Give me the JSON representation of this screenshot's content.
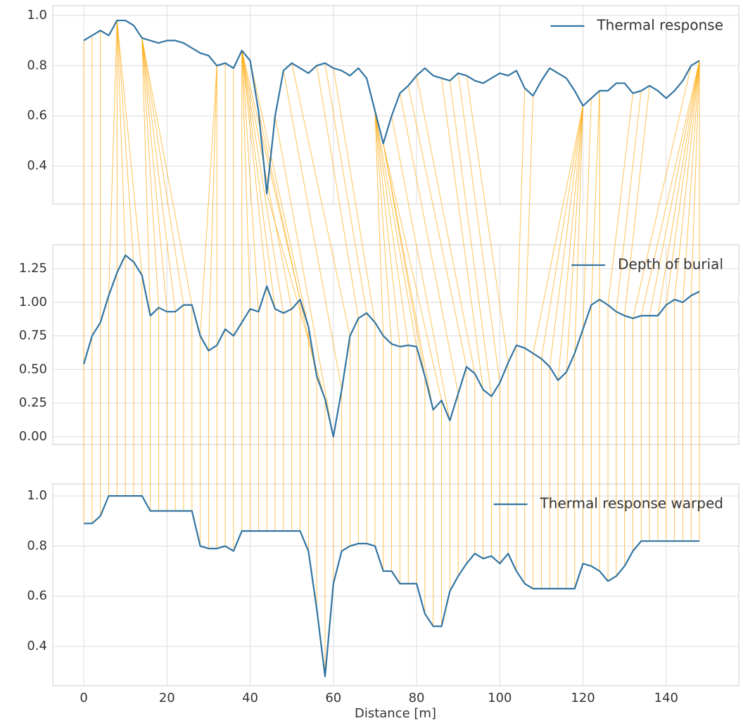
{
  "chart_data": [
    {
      "type": "line",
      "x": [
        0,
        2,
        4,
        6,
        8,
        10,
        12,
        14,
        16,
        18,
        20,
        22,
        24,
        26,
        28,
        30,
        32,
        34,
        36,
        38,
        40,
        42,
        44,
        46,
        48,
        50,
        52,
        54,
        56,
        58,
        60,
        62,
        64,
        66,
        68,
        70,
        72,
        74,
        76,
        78,
        80,
        82,
        84,
        86,
        88,
        90,
        92,
        94,
        96,
        98,
        100,
        102,
        104,
        106,
        108,
        110,
        112,
        114,
        116,
        118,
        120,
        122,
        124,
        126,
        128,
        130,
        132,
        134,
        136,
        138,
        140,
        142,
        144,
        146,
        148
      ],
      "series": [
        {
          "name": "Thermal response",
          "color": "#3274a1",
          "values": [
            0.9,
            0.92,
            0.94,
            0.92,
            0.98,
            0.98,
            0.96,
            0.91,
            0.9,
            0.89,
            0.9,
            0.9,
            0.89,
            0.87,
            0.85,
            0.84,
            0.8,
            0.81,
            0.79,
            0.86,
            0.82,
            0.62,
            0.29,
            0.6,
            0.78,
            0.81,
            0.79,
            0.77,
            0.8,
            0.81,
            0.79,
            0.78,
            0.76,
            0.79,
            0.75,
            0.62,
            0.49,
            0.6,
            0.69,
            0.72,
            0.76,
            0.79,
            0.76,
            0.75,
            0.74,
            0.77,
            0.76,
            0.74,
            0.73,
            0.75,
            0.77,
            0.76,
            0.78,
            0.71,
            0.68,
            0.74,
            0.79,
            0.77,
            0.75,
            0.7,
            0.64,
            0.67,
            0.7,
            0.7,
            0.73,
            0.73,
            0.69,
            0.7,
            0.72,
            0.7,
            0.67,
            0.7,
            0.74,
            0.8,
            0.82
          ]
        }
      ],
      "xlim": [
        -7.45,
        157.45
      ],
      "ylim": [
        0.249,
        1.039
      ],
      "yticks": [
        0.4,
        0.6,
        0.8,
        {
          "value": 1.0,
          "label": "1.0"
        }
      ],
      "grid": true,
      "legend": "upper right"
    },
    {
      "type": "line",
      "x": [
        0,
        2,
        4,
        6,
        8,
        10,
        12,
        14,
        16,
        18,
        20,
        22,
        24,
        26,
        28,
        30,
        32,
        34,
        36,
        38,
        40,
        42,
        44,
        46,
        48,
        50,
        52,
        54,
        56,
        58,
        60,
        62,
        64,
        66,
        68,
        70,
        72,
        74,
        76,
        78,
        80,
        82,
        84,
        86,
        88,
        90,
        92,
        94,
        96,
        98,
        100,
        102,
        104,
        106,
        108,
        110,
        112,
        114,
        116,
        118,
        120,
        122,
        124,
        126,
        128,
        130,
        132,
        134,
        136,
        138,
        140,
        142,
        144,
        146,
        148
      ],
      "series": [
        {
          "name": "Depth of burial",
          "color": "#3274a1",
          "values": [
            0.54,
            0.75,
            0.85,
            1.05,
            1.22,
            1.35,
            1.3,
            1.2,
            0.9,
            0.96,
            0.93,
            0.93,
            0.98,
            0.98,
            0.75,
            0.64,
            0.68,
            0.8,
            0.75,
            0.85,
            0.95,
            0.93,
            1.12,
            0.95,
            0.92,
            0.95,
            1.02,
            0.82,
            0.45,
            0.28,
            0.0,
            0.35,
            0.75,
            0.88,
            0.92,
            0.85,
            0.75,
            0.69,
            0.67,
            0.68,
            0.67,
            0.45,
            0.2,
            0.27,
            0.12,
            0.32,
            0.52,
            0.47,
            0.35,
            0.3,
            0.4,
            0.55,
            0.68,
            0.66,
            0.62,
            0.58,
            0.52,
            0.42,
            0.48,
            0.62,
            0.8,
            0.98,
            1.02,
            0.98,
            0.93,
            0.9,
            0.88,
            0.9,
            0.9,
            0.9,
            0.98,
            1.02,
            1.0,
            1.05,
            1.08
          ]
        }
      ],
      "alignment_x": [
        0,
        2,
        4,
        8,
        8,
        8,
        8,
        8,
        14,
        14,
        14,
        14,
        14,
        14,
        32,
        32,
        32,
        34,
        36,
        38,
        38,
        38,
        38,
        38,
        38,
        38,
        38,
        40,
        42,
        44,
        46,
        48,
        50,
        56,
        58,
        60,
        70,
        70,
        70,
        70,
        70,
        72,
        72,
        72,
        74,
        76,
        78,
        80,
        86,
        88,
        90,
        92,
        106,
        108,
        120,
        120,
        120,
        120,
        120,
        120,
        122,
        124,
        124,
        132,
        134,
        136,
        146,
        148,
        148,
        148,
        148,
        148,
        148,
        148,
        148
      ],
      "alignment_color": "#ffa500",
      "xlim": [
        -7.45,
        157.45
      ],
      "ylim": [
        -0.058,
        1.428
      ],
      "yticks": [
        {
          "value": 0,
          "label": "0.00"
        },
        0.25,
        {
          "value": 0.5,
          "label": "0.50"
        },
        0.75,
        {
          "value": 1.0,
          "label": "1.00"
        },
        1.25
      ],
      "grid": true,
      "legend": "upper right"
    },
    {
      "type": "line",
      "x": [
        0,
        2,
        4,
        6,
        8,
        10,
        12,
        14,
        16,
        18,
        20,
        22,
        24,
        26,
        28,
        30,
        32,
        34,
        36,
        38,
        40,
        42,
        44,
        46,
        48,
        50,
        52,
        54,
        56,
        58,
        60,
        62,
        64,
        66,
        68,
        70,
        72,
        74,
        76,
        78,
        80,
        82,
        84,
        86,
        88,
        90,
        92,
        94,
        96,
        98,
        100,
        102,
        104,
        106,
        108,
        110,
        112,
        114,
        116,
        118,
        120,
        122,
        124,
        126,
        128,
        130,
        132,
        134,
        136,
        138,
        140,
        142,
        144,
        146,
        148
      ],
      "series": [
        {
          "name": "Thermal response warped",
          "color": "#3274a1",
          "values": [
            0.89,
            0.89,
            0.92,
            1.0,
            1.0,
            1.0,
            1.0,
            1.0,
            0.94,
            0.94,
            0.94,
            0.94,
            0.94,
            0.94,
            0.8,
            0.79,
            0.79,
            0.8,
            0.78,
            0.86,
            0.86,
            0.86,
            0.86,
            0.86,
            0.86,
            0.86,
            0.86,
            0.78,
            0.55,
            0.28,
            0.65,
            0.78,
            0.8,
            0.81,
            0.81,
            0.8,
            0.7,
            0.7,
            0.65,
            0.65,
            0.65,
            0.53,
            0.48,
            0.48,
            0.62,
            0.68,
            0.73,
            0.77,
            0.75,
            0.76,
            0.73,
            0.77,
            0.7,
            0.65,
            0.63,
            0.63,
            0.63,
            0.63,
            0.63,
            0.63,
            0.73,
            0.72,
            0.7,
            0.66,
            0.68,
            0.72,
            0.78,
            0.82,
            0.82,
            0.82,
            0.82,
            0.82,
            0.82,
            0.82,
            0.82
          ]
        }
      ],
      "xlim": [
        -7.45,
        157.45
      ],
      "ylim": [
        0.243,
        1.048
      ],
      "yticks": [
        0.4,
        0.6,
        0.8,
        {
          "value": 1.0,
          "label": "1.0"
        }
      ],
      "xticks": [
        0,
        20,
        40,
        60,
        80,
        100,
        120,
        140
      ],
      "xlabel": "Distance [m]",
      "grid": true,
      "legend": "upper right"
    }
  ]
}
